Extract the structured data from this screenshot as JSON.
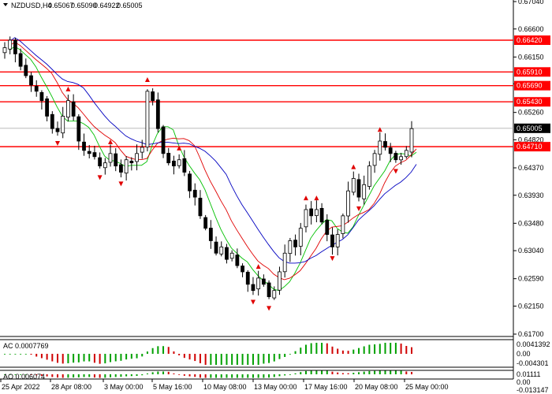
{
  "symbol": "NZDUSD,H4",
  "ohlc": {
    "open": "0.65067",
    "high": "0.65090",
    "low": "0.64922",
    "close": "0.65005"
  },
  "price_axis": {
    "labels": [
      "0.67040",
      "0.66600",
      "0.66150",
      "0.65720",
      "0.65260",
      "0.64820",
      "0.64370",
      "0.63930",
      "0.63480",
      "0.63040",
      "0.62590",
      "0.62150",
      "0.61700"
    ],
    "range": [
      0.617,
      0.6704
    ]
  },
  "levels": [
    {
      "label": "0.66420",
      "value": 0.6642
    },
    {
      "label": "0.65910",
      "value": 0.6591
    },
    {
      "label": "0.65690",
      "value": 0.6569
    },
    {
      "label": "0.65430",
      "value": 0.6543
    },
    {
      "label": "0.64710",
      "value": 0.6471
    }
  ],
  "current_price": {
    "label": "0.65005",
    "value": 0.65005
  },
  "time_axis": [
    "25 Apr 2022",
    "28 Apr 08:00",
    "3 May 00:00",
    "5 May 16:00",
    "10 May 08:00",
    "13 May 00:00",
    "17 May 16:00",
    "20 May 08:00",
    "25 May 00:00"
  ],
  "ac_panel": {
    "title": "AC 0.0007769",
    "labels": [
      "0.0041392",
      "0.00",
      "-0.004301"
    ]
  },
  "ao_panel": {
    "title": "AO 0.006074",
    "labels": [
      "0.01111",
      "0.00",
      "-0.013147"
    ]
  },
  "colors": {
    "level": "#ff0000",
    "bull": "#000000",
    "bear": "#000000",
    "ma_fast": "#00c000",
    "ma_mid": "#e00000",
    "ma_slow": "#0000c0",
    "osc_up": "#00a000",
    "osc_down": "#d00000",
    "fractal": "#e00000"
  },
  "chart_data": {
    "type": "candlestick",
    "series": [
      {
        "values": [
          0.663,
          0.6642,
          0.662,
          0.66,
          0.6585,
          0.657,
          0.656,
          0.6545,
          0.652,
          0.65,
          0.6495,
          0.652,
          0.6545,
          0.652,
          0.648,
          0.6465,
          0.646,
          0.6455,
          0.644,
          0.6445,
          0.646,
          0.644,
          0.643,
          0.645,
          0.6445,
          0.646,
          0.647,
          0.656,
          0.6545,
          0.65,
          0.646,
          0.6445,
          0.644,
          0.645,
          0.643,
          0.64,
          0.639,
          0.636,
          0.634,
          0.632,
          0.63,
          0.631,
          0.629,
          0.63,
          0.628,
          0.627,
          0.625,
          0.624,
          0.626,
          0.625,
          0.623,
          0.624,
          0.627,
          0.63,
          0.632,
          0.631,
          0.634,
          0.637,
          0.636,
          0.637,
          0.635,
          0.633,
          0.631,
          0.633,
          0.636,
          0.64,
          0.642,
          0.639,
          0.641,
          0.644,
          0.646,
          0.648,
          0.647,
          0.646,
          0.645,
          0.6455,
          0.6465,
          0.65
        ]
      }
    ]
  }
}
